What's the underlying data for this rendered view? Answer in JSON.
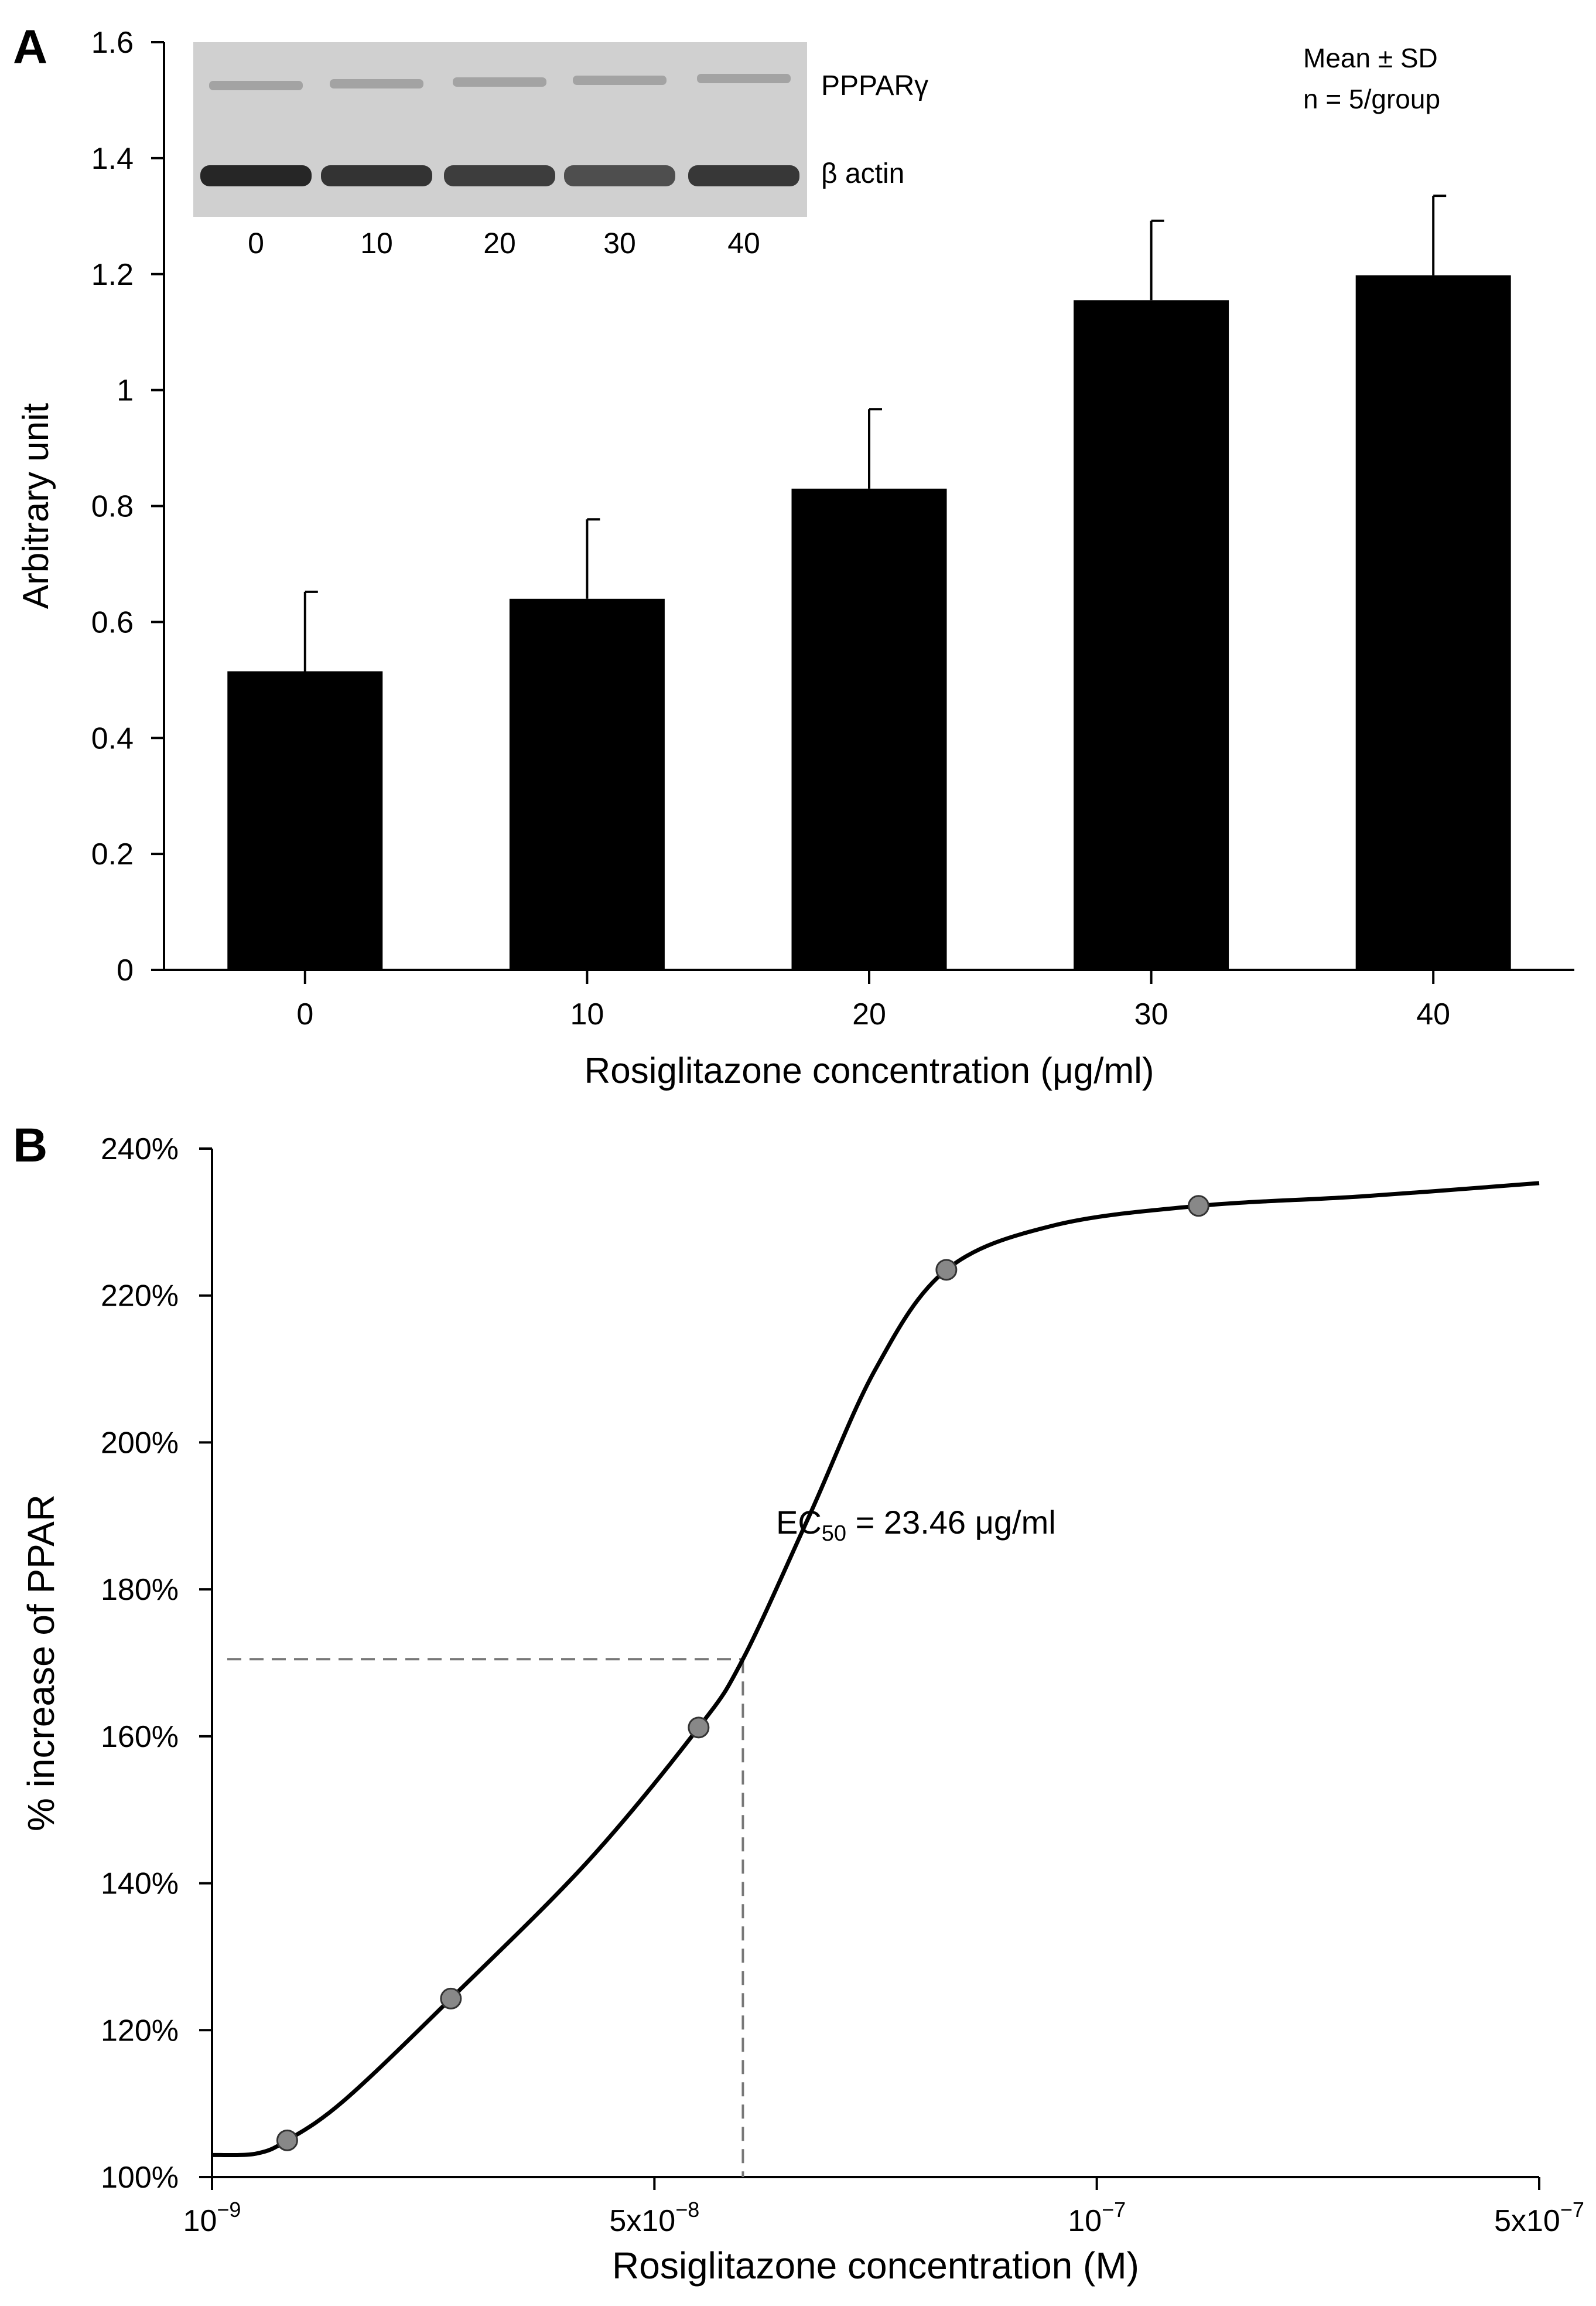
{
  "panelA": {
    "letter": "A",
    "legend": {
      "line1": "Mean ± SD",
      "line2": "n = 5/group"
    },
    "blot": {
      "band1_label": "PPPARγ",
      "band2_label": "β actin",
      "lanes": [
        "0",
        "10",
        "20",
        "30",
        "40"
      ]
    }
  },
  "panelB": {
    "letter": "B",
    "ec50": {
      "prefix": "EC",
      "sub": "50",
      "suffix": " = 23.46 μg/ml",
      "value_y": 170.5
    }
  },
  "chart_data": [
    {
      "type": "bar",
      "title": "",
      "categories": [
        "0",
        "10",
        "20",
        "30",
        "40"
      ],
      "values": [
        0.515,
        0.64,
        0.83,
        1.155,
        1.198
      ],
      "errors": [
        0.137,
        0.137,
        0.137,
        0.137,
        0.137
      ],
      "xlabel": "Rosiglitazone concentration (μg/ml)",
      "ylabel": "Arbitrary unit",
      "ylim": [
        0,
        1.6
      ],
      "yticks": [
        0,
        0.2,
        0.4,
        0.6,
        0.8,
        1,
        1.2,
        1.4,
        1.6
      ],
      "ytick_labels": [
        "0",
        "0.2",
        "0.4",
        "0.6",
        "0.8",
        "1",
        "1.2",
        "1.4",
        "1.6"
      ],
      "bar_color": "#000000"
    },
    {
      "type": "line",
      "title": "",
      "xlabel": "Rosiglitazone concentration (M)",
      "ylabel": "% increase of PPAR",
      "ylim": [
        100,
        240
      ],
      "yticks": [
        100,
        120,
        140,
        160,
        180,
        200,
        220,
        240
      ],
      "ytick_labels": [
        "100%",
        "120%",
        "140%",
        "160%",
        "180%",
        "200%",
        "220%",
        "240%"
      ],
      "xrange_index": [
        0,
        3
      ],
      "xticks": [
        {
          "base": "10",
          "exp": "−9",
          "index": 0
        },
        {
          "base": "5x10",
          "exp": "−8",
          "index": 1
        },
        {
          "base": "10",
          "exp": "−7",
          "index": 2
        },
        {
          "base": "5x10",
          "exp": "−7",
          "index": 3
        }
      ],
      "points": [
        {
          "x_index": 0.17,
          "y": 105.0
        },
        {
          "x_index": 0.54,
          "y": 124.3
        },
        {
          "x_index": 1.1,
          "y": 161.2
        },
        {
          "x_index": 1.66,
          "y": 223.5
        },
        {
          "x_index": 2.23,
          "y": 232.2
        }
      ],
      "curve": [
        [
          0.0,
          103.0
        ],
        [
          0.1,
          103.2
        ],
        [
          0.17,
          105.0
        ],
        [
          0.3,
          110.5
        ],
        [
          0.54,
          124.3
        ],
        [
          0.85,
          143.0
        ],
        [
          1.1,
          161.2
        ],
        [
          1.2,
          170.5
        ],
        [
          1.35,
          190.0
        ],
        [
          1.5,
          210.0
        ],
        [
          1.66,
          223.5
        ],
        [
          1.9,
          229.5
        ],
        [
          2.23,
          232.2
        ],
        [
          2.6,
          233.5
        ],
        [
          3.0,
          235.3
        ]
      ],
      "ec50_x_index": 1.2,
      "marker_color": "#888888"
    }
  ]
}
